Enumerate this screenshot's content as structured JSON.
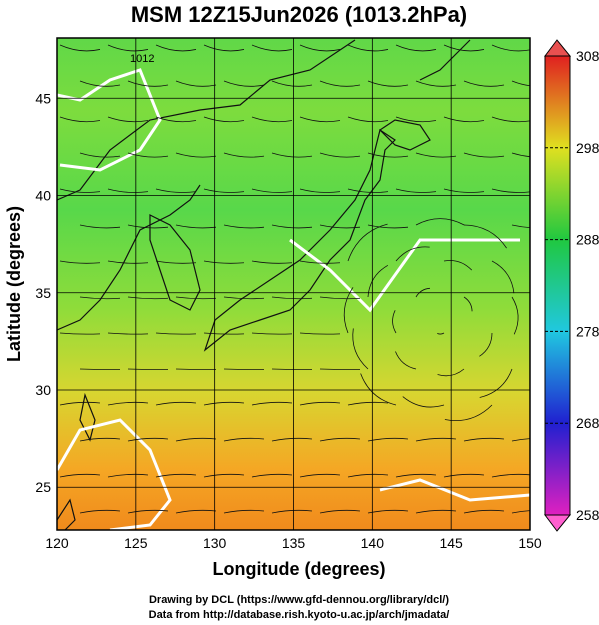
{
  "title": "MSM 12Z15Jun2026 (1013.2hPa)",
  "map": {
    "xlabel": "Longitude (degrees)",
    "ylabel": "Latitude  (degrees)",
    "xlim": [
      120,
      150
    ],
    "ylim": [
      22.8,
      48.1
    ],
    "xticks": [
      120,
      125,
      130,
      135,
      140,
      145,
      150
    ],
    "yticks": [
      25,
      30,
      35,
      40,
      45
    ],
    "contour_label": "1012"
  },
  "colorbar": {
    "lim": [
      258,
      308
    ],
    "ticks": [
      258,
      268,
      278,
      288,
      298,
      308
    ]
  },
  "credits": [
    "Drawing by DCL (https://www.gfd-dennou.org/library/dcl/)",
    "Data from http://database.rish.kyoto-u.ac.jp/arch/jmadata/"
  ]
}
